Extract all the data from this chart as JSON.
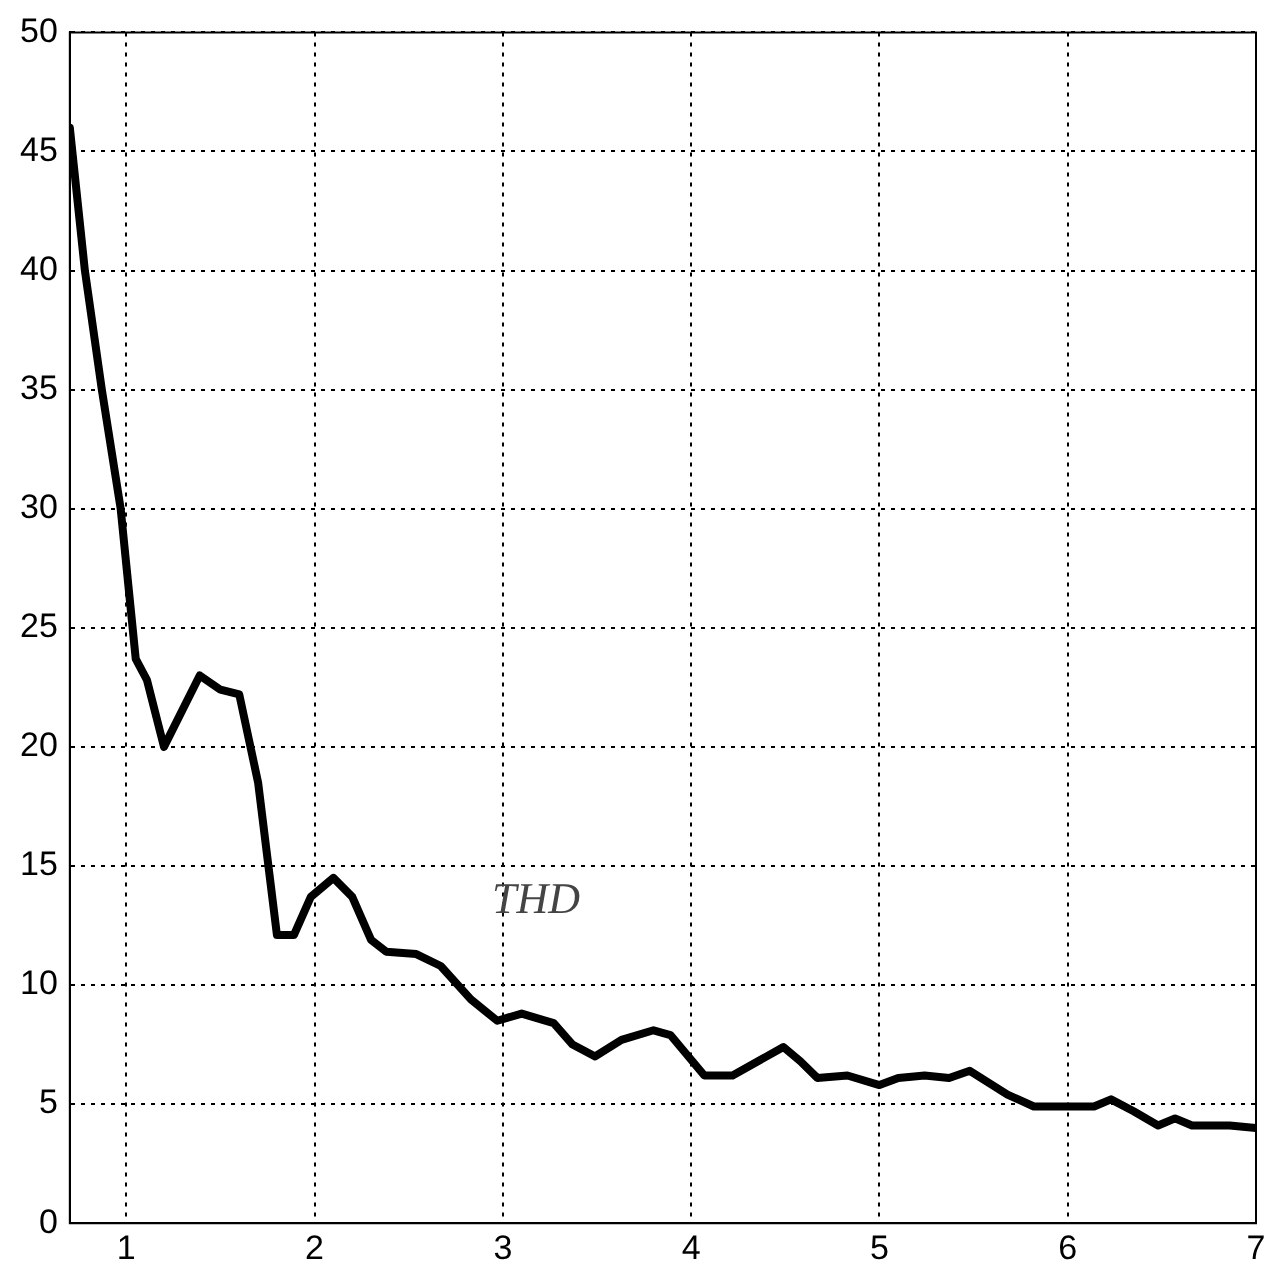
{
  "chart_data": {
    "type": "line",
    "x": [
      0.7,
      0.78,
      0.87,
      0.97,
      1.05,
      1.11,
      1.2,
      1.39,
      1.5,
      1.6,
      1.7,
      1.8,
      1.89,
      1.98,
      2.1,
      2.2,
      2.3,
      2.38,
      2.54,
      2.67,
      2.83,
      2.97,
      3.1,
      3.27,
      3.37,
      3.49,
      3.63,
      3.8,
      3.89,
      4.07,
      4.22,
      4.49,
      4.58,
      4.67,
      4.83,
      5.0,
      5.1,
      5.24,
      5.37,
      5.48,
      5.68,
      5.82,
      6.0,
      6.14,
      6.23,
      6.35,
      6.48,
      6.57,
      6.66,
      6.86,
      7.0
    ],
    "series": [
      {
        "color": "#000000",
        "values": [
          46,
          40,
          35,
          30,
          23.7,
          22.8,
          20,
          23,
          22.4,
          22.2,
          18.5,
          12.1,
          12.1,
          13.7,
          14.5,
          13.7,
          11.9,
          11.4,
          11.3,
          10.8,
          9.4,
          8.5,
          8.8,
          8.4,
          7.5,
          7,
          7.7,
          8.1,
          7.9,
          6.2,
          6.2,
          7.4,
          6.8,
          6.1,
          6.2,
          5.8,
          6.1,
          6.2,
          6.1,
          6.4,
          5.4,
          4.9,
          4.9,
          4.9,
          5.2,
          4.7,
          4.1,
          4.4,
          4.1,
          4.1,
          4
        ]
      }
    ],
    "xlim": [
      0.7,
      7
    ],
    "xticks": [
      1,
      2,
      3,
      4,
      5,
      6,
      7
    ],
    "ylim": [
      0,
      50
    ],
    "yticks": [
      0,
      5,
      10,
      15,
      20,
      25,
      30,
      35,
      40,
      45,
      50
    ],
    "grid": true,
    "legend": false,
    "marker": "none",
    "line_style": "solid",
    "annotations": [
      "THD"
    ]
  }
}
